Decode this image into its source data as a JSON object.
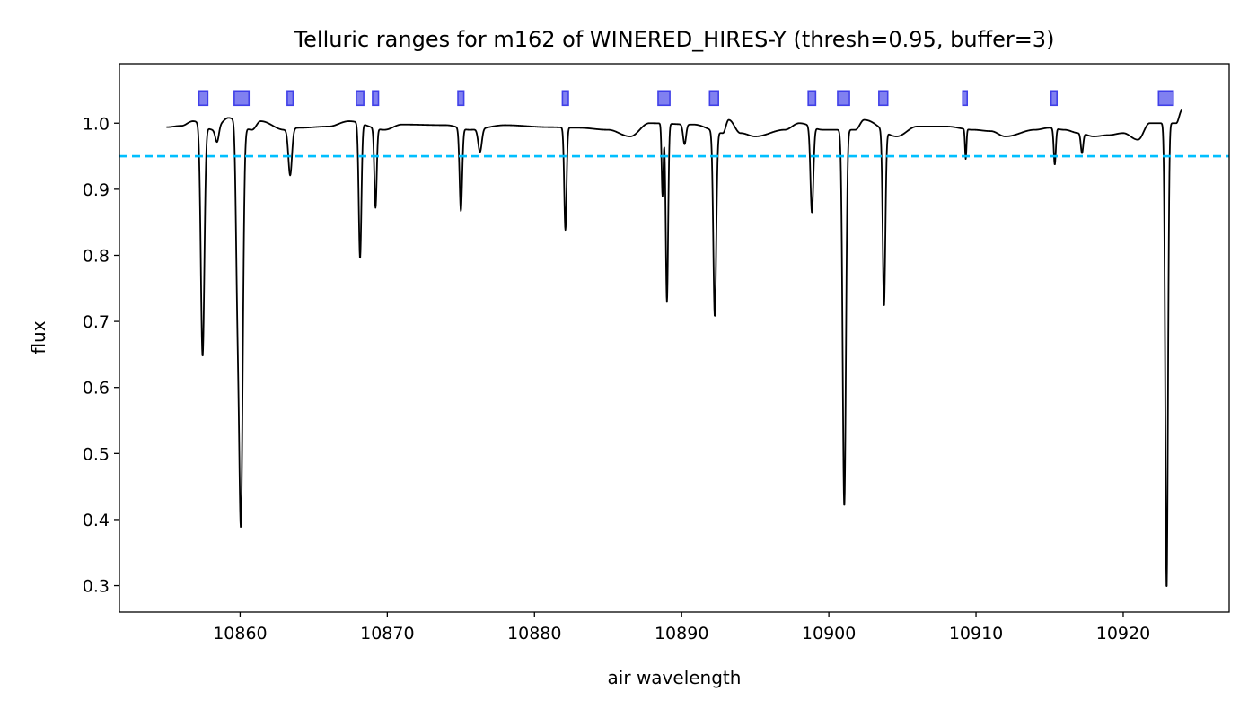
{
  "chart_data": {
    "type": "line",
    "title": "Telluric ranges for m162 of WINERED_HIRES-Y (thresh=0.95, buffer=3)",
    "xlabel": "air wavelength",
    "ylabel": "flux",
    "xlim": [
      10851.8,
      10927.2
    ],
    "ylim": [
      0.26,
      1.09
    ],
    "xticks": [
      10860,
      10870,
      10880,
      10890,
      10900,
      10910,
      10920
    ],
    "yticks": [
      0.3,
      0.4,
      0.5,
      0.6,
      0.7,
      0.8,
      0.9,
      1.0
    ],
    "grid": false,
    "threshold": {
      "value": 0.95,
      "color": "#00bfff",
      "style": "dashed"
    },
    "telluric_ranges": {
      "y_center": 1.038,
      "color": "#8080f0",
      "edge_color": "#4040e8",
      "ranges": [
        [
          10857.2,
          10857.8
        ],
        [
          10859.6,
          10860.6
        ],
        [
          10863.2,
          10863.6
        ],
        [
          10867.9,
          10868.4
        ],
        [
          10869.0,
          10869.4
        ],
        [
          10874.8,
          10875.2
        ],
        [
          10881.9,
          10882.3
        ],
        [
          10888.4,
          10889.2
        ],
        [
          10891.9,
          10892.5
        ],
        [
          10898.6,
          10899.1
        ],
        [
          10900.6,
          10901.4
        ],
        [
          10903.4,
          10904.0
        ],
        [
          10909.1,
          10909.4
        ],
        [
          10915.1,
          10915.5
        ],
        [
          10922.4,
          10923.4
        ]
      ]
    },
    "series": [
      {
        "color": "#000000",
        "continuum": [
          [
            10855.0,
            0.994
          ],
          [
            10856.0,
            0.996
          ],
          [
            10856.8,
            1.003
          ],
          [
            10858.2,
            0.99
          ],
          [
            10858.6,
            1.0
          ],
          [
            10859.2,
            1.008
          ],
          [
            10860.8,
            0.99
          ],
          [
            10861.4,
            1.003
          ],
          [
            10863.0,
            0.99
          ],
          [
            10864.0,
            0.993
          ],
          [
            10866.0,
            0.995
          ],
          [
            10867.4,
            1.003
          ],
          [
            10869.8,
            0.99
          ],
          [
            10871.0,
            0.998
          ],
          [
            10874.0,
            0.997
          ],
          [
            10875.6,
            0.99
          ],
          [
            10878.0,
            0.997
          ],
          [
            10881.0,
            0.994
          ],
          [
            10883.0,
            0.993
          ],
          [
            10885.0,
            0.99
          ],
          [
            10886.5,
            0.98
          ],
          [
            10887.8,
            1.0
          ],
          [
            10890.8,
            0.998
          ],
          [
            10892.8,
            0.985
          ],
          [
            10893.2,
            1.005
          ],
          [
            10894.0,
            0.985
          ],
          [
            10895.0,
            0.98
          ],
          [
            10897.0,
            0.99
          ],
          [
            10898.0,
            1.0
          ],
          [
            10899.6,
            0.99
          ],
          [
            10901.8,
            0.99
          ],
          [
            10902.4,
            1.005
          ],
          [
            10904.6,
            0.98
          ],
          [
            10906.0,
            0.995
          ],
          [
            10908.0,
            0.995
          ],
          [
            10909.8,
            0.99
          ],
          [
            10911.0,
            0.988
          ],
          [
            10912.0,
            0.98
          ],
          [
            10914.0,
            0.99
          ],
          [
            10915.0,
            0.993
          ],
          [
            10916.0,
            0.99
          ],
          [
            10917.0,
            0.985
          ],
          [
            10918.0,
            0.98
          ],
          [
            10919.0,
            0.982
          ],
          [
            10920.0,
            0.985
          ],
          [
            10921.0,
            0.975
          ],
          [
            10921.8,
            1.0
          ],
          [
            10923.6,
            1.0
          ],
          [
            10924.0,
            1.02
          ]
        ],
        "absorption_lines": [
          {
            "center": 10857.45,
            "depth": 0.35,
            "width": 0.12
          },
          {
            "center": 10858.45,
            "depth": 0.025,
            "width": 0.12
          },
          {
            "center": 10860.05,
            "depth": 0.6,
            "width": 0.13
          },
          {
            "center": 10859.8,
            "depth": 0.2,
            "width": 0.1
          },
          {
            "center": 10863.4,
            "depth": 0.07,
            "width": 0.12
          },
          {
            "center": 10868.15,
            "depth": 0.205,
            "width": 0.09
          },
          {
            "center": 10869.2,
            "depth": 0.12,
            "width": 0.08
          },
          {
            "center": 10875.0,
            "depth": 0.125,
            "width": 0.09
          },
          {
            "center": 10876.3,
            "depth": 0.035,
            "width": 0.12
          },
          {
            "center": 10882.1,
            "depth": 0.155,
            "width": 0.08
          },
          {
            "center": 10888.7,
            "depth": 0.11,
            "width": 0.06
          },
          {
            "center": 10889.0,
            "depth": 0.27,
            "width": 0.08
          },
          {
            "center": 10890.2,
            "depth": 0.03,
            "width": 0.1
          },
          {
            "center": 10892.25,
            "depth": 0.28,
            "width": 0.1
          },
          {
            "center": 10898.85,
            "depth": 0.13,
            "width": 0.1
          },
          {
            "center": 10901.05,
            "depth": 0.57,
            "width": 0.11
          },
          {
            "center": 10903.75,
            "depth": 0.265,
            "width": 0.09
          },
          {
            "center": 10909.3,
            "depth": 0.045,
            "width": 0.05
          },
          {
            "center": 10915.35,
            "depth": 0.055,
            "width": 0.07
          },
          {
            "center": 10917.2,
            "depth": 0.03,
            "width": 0.08
          },
          {
            "center": 10922.95,
            "depth": 0.705,
            "width": 0.09
          }
        ]
      }
    ]
  }
}
